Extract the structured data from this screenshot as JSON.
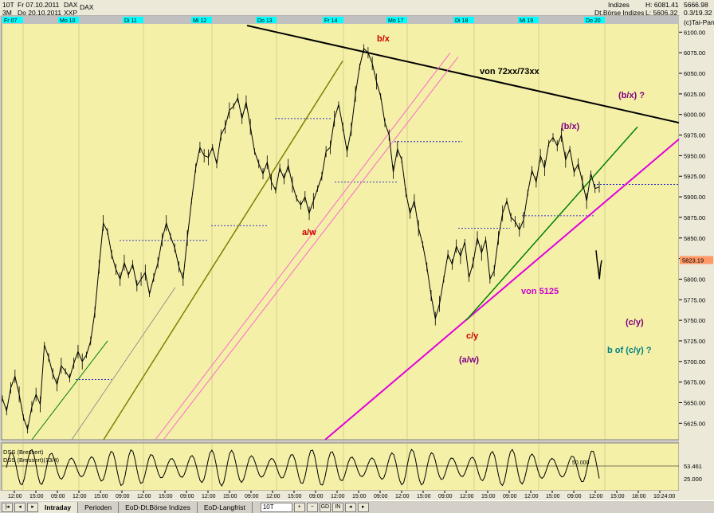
{
  "header": {
    "symbol_short": "10T",
    "period_short": "3M",
    "date_from": "Fr 07.10.2011",
    "date_to": "Do 20.10.2011",
    "index_name": "DAX",
    "sub_name": "XXP",
    "title": "DAX",
    "group": "Indizes",
    "group_sub": "Dt.Börse Indizes",
    "h_label": "H: 6081.41",
    "l_label": "L: 5606.32",
    "top_price": "5666.98",
    "top_sub": "0.3/19.32",
    "brand": "(c)Tai-Pan"
  },
  "day_labels": [
    "Fr 07",
    "Mo 10",
    "Di 11",
    "Mi 12",
    "Do 13",
    "Fr 14",
    "Mo 17",
    "Di 18",
    "Mi 19",
    "Do 20"
  ],
  "price_ticks": [
    6100,
    6075,
    6050,
    6025,
    6000,
    5975,
    5950,
    5925,
    5900,
    5875,
    5850,
    5825,
    5800,
    5775,
    5750,
    5725,
    5700,
    5675,
    5650,
    5625
  ],
  "last_price_label": "5823.19",
  "time_ticks": [
    "12:00",
    "15:00",
    "09:00",
    "12:00",
    "15:00",
    "09:00",
    "12:00",
    "15:00",
    "09:00",
    "12:00",
    "15:00",
    "09:00",
    "12:00",
    "15:00",
    "09:00",
    "12:00",
    "15:00",
    "09:00",
    "12:00",
    "15:00",
    "09:00",
    "12:00",
    "15:00",
    "09:00",
    "12:00",
    "15:00",
    "09:00",
    "12:00",
    "15:00",
    "18:00",
    "10:24:00"
  ],
  "chart_data": {
    "type": "line",
    "series": [
      {
        "values": [
          5655,
          5640,
          5668,
          5682,
          5660,
          5632,
          5618,
          5645,
          5660,
          5648,
          5720,
          5705,
          5685,
          5672,
          5695,
          5688,
          5680,
          5698,
          5712,
          5700,
          5708,
          5725,
          5760,
          5815,
          5868,
          5858,
          5830,
          5812,
          5800,
          5820,
          5805,
          5818,
          5792,
          5800,
          5808,
          5782,
          5802,
          5820,
          5848,
          5868,
          5852,
          5838,
          5815,
          5800,
          5850,
          5895,
          5935,
          5960,
          5950,
          5948,
          5960,
          5940,
          5975,
          5985,
          6005,
          6010,
          6020,
          5995,
          6015,
          5985,
          5955,
          5940,
          5928,
          5942,
          5918,
          5908,
          5935,
          5922,
          5938,
          5915,
          5898,
          5890,
          5900,
          5880,
          5895,
          5910,
          5925,
          5955,
          5960,
          5995,
          6012,
          5985,
          5955,
          5982,
          6025,
          6058,
          6080,
          6075,
          6062,
          6040,
          6022,
          5990,
          5975,
          5930,
          5958,
          5945,
          5905,
          5880,
          5895,
          5862,
          5842,
          5815,
          5780,
          5752,
          5770,
          5800,
          5830,
          5818,
          5840,
          5828,
          5845,
          5802,
          5820,
          5850,
          5832,
          5848,
          5800,
          5810,
          5850,
          5880,
          5895,
          5875,
          5870,
          5860,
          5872,
          5905,
          5932,
          5918,
          5950,
          5935,
          5965,
          5972,
          5962,
          5975,
          5945,
          5958,
          5930,
          5940,
          5918,
          5895,
          5928,
          5910,
          5912
        ]
      },
      {
        "values": [
          5835,
          5822,
          5812,
          5800,
          5815,
          5823
        ]
      }
    ],
    "ylim": [
      5605,
      6110
    ],
    "levels": [
      {
        "price": 5678,
        "label": ""
      },
      {
        "price": 5847,
        "label": ""
      },
      {
        "price": 5865,
        "label": ""
      },
      {
        "price": 5995,
        "label": ""
      },
      {
        "price": 5918,
        "label": ""
      },
      {
        "price": 5967,
        "label": ""
      },
      {
        "price": 5862,
        "label": ""
      },
      {
        "price": 5877,
        "label": ""
      },
      {
        "price": 5915,
        "label": ""
      }
    ],
    "annotations": [
      {
        "text": "b/x",
        "color": "#cc0000"
      },
      {
        "text": "von 72xx/73xx",
        "color": "#000000"
      },
      {
        "text": "(b/x)  ?",
        "color": "#800080"
      },
      {
        "text": "(b/x)",
        "color": "#800080"
      },
      {
        "text": "a/w",
        "color": "#cc0000"
      },
      {
        "text": "c/y",
        "color": "#cc0000"
      },
      {
        "text": "(a/w)",
        "color": "#800080"
      },
      {
        "text": "von 5125",
        "color": "#cc00cc"
      },
      {
        "text": "(c/y)",
        "color": "#800080"
      },
      {
        "text": "b of (c/y)  ?",
        "color": "#008080"
      }
    ]
  },
  "indicator": {
    "label1": "DSS (Bressert)",
    "label2": "DSS (Bressert)(13/4)",
    "level_label": "50.000",
    "value_label": "53.461",
    "tick_label": "25.000"
  },
  "tabs": {
    "intraday": "Intraday",
    "perioden": "Perioden",
    "eod_dt": "EoD-Dt.Börse Indizes",
    "eod_lang": "EoD-Langfrist",
    "combo_value": "10T",
    "btn_gd": "GD",
    "btn_in": "IN"
  },
  "colors": {
    "plot_bg": "#f4f0a8",
    "price": "#000000",
    "dotted": "#0000cc",
    "resistance": "#000000",
    "support_magenta": "#e000e0",
    "green": "#008000",
    "olive": "#808000",
    "pink": "#ff66cc"
  }
}
